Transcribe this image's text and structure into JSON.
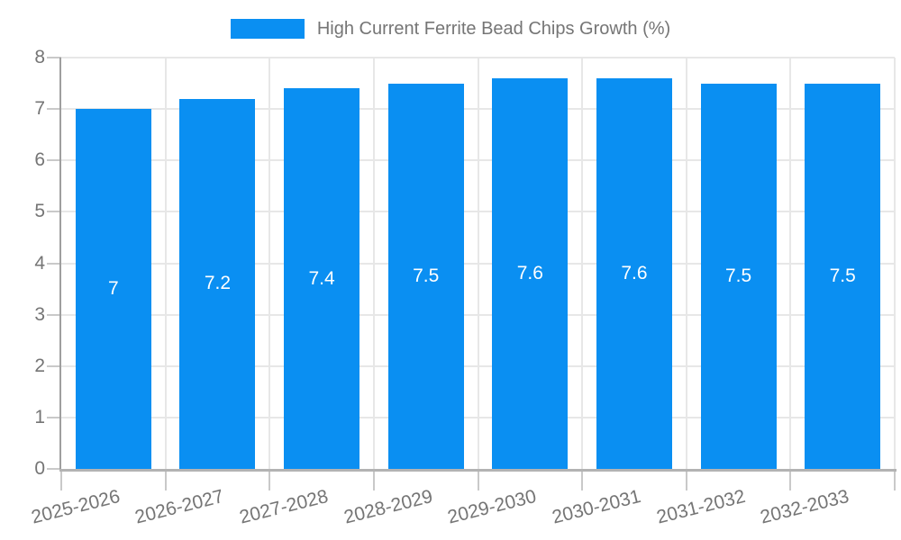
{
  "chart_data": {
    "type": "bar",
    "title": "High Current Ferrite Bead Chips Growth (%)",
    "categories": [
      "2025-2026",
      "2026-2027",
      "2027-2028",
      "2028-2029",
      "2029-2030",
      "2030-2031",
      "2031-2032",
      "2032-2033"
    ],
    "values": [
      7,
      7.2,
      7.4,
      7.5,
      7.6,
      7.6,
      7.5,
      7.5
    ],
    "value_labels": [
      "7",
      "7.2",
      "7.4",
      "7.5",
      "7.6",
      "7.6",
      "7.5",
      "7.5"
    ],
    "xlabel": "",
    "ylabel": "",
    "ylim": [
      0,
      8
    ],
    "y_ticks": [
      0,
      1,
      2,
      3,
      4,
      5,
      6,
      7,
      8
    ],
    "grid": "horizontal and vertical",
    "legend_position": "top-center",
    "colors": {
      "bar": "#0a8ff2",
      "text": "#757575",
      "value_label": "#ffffff",
      "grid": "#e7e7e7",
      "axis_y": "#9e9e9e",
      "axis_x": "#b3b3b3",
      "tick": "#c9c9c9",
      "background": "#ffffff"
    }
  }
}
